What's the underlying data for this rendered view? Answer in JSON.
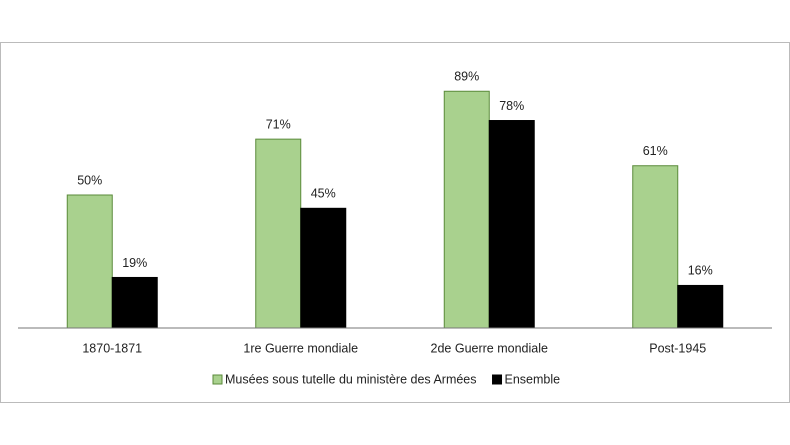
{
  "chart_data": {
    "type": "bar",
    "categories": [
      "1870-1871",
      "1re Guerre mondiale",
      "2de Guerre mondiale",
      "Post-1945"
    ],
    "series": [
      {
        "name": "Musées sous tutelle du ministère des Armées",
        "color": "#a9d18e",
        "values": [
          50,
          71,
          89,
          61
        ],
        "value_labels": [
          "50%",
          "71%",
          "89%",
          "61%"
        ]
      },
      {
        "name": "Ensemble",
        "color": "#000000",
        "values": [
          19,
          45,
          78,
          16
        ],
        "value_labels": [
          "19%",
          "45%",
          "78%",
          "16%"
        ]
      }
    ]
  }
}
